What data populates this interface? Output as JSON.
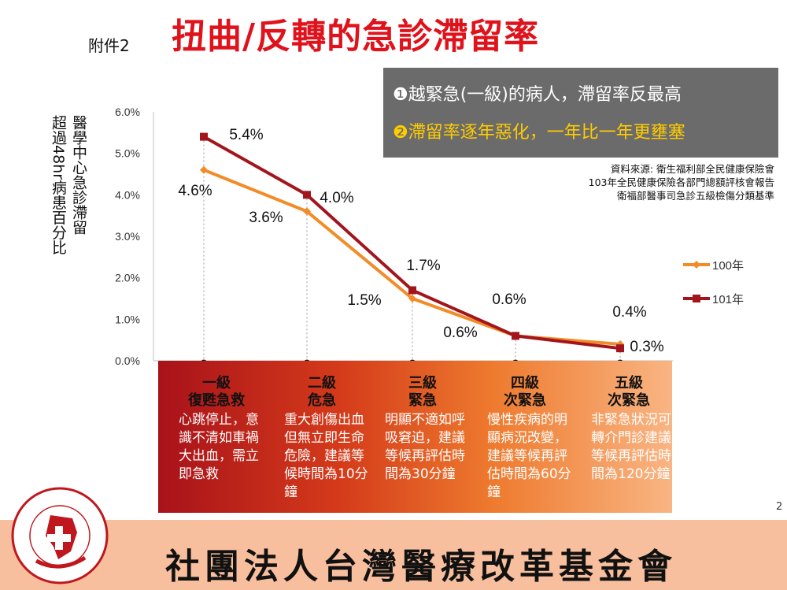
{
  "header": {
    "attachment": "附件2",
    "title": "扭曲/反轉的急診滯留率"
  },
  "callout": {
    "line1": "❶越緊急(一級)的病人，滯留率反最高",
    "line2": "❷滯留率逐年惡化，一年比一年更壅塞"
  },
  "source": {
    "line1": "資料來源: 衛生福利部全民健康保險會",
    "line2": "103年全民健康保險各部門總額評核會報告",
    "line3": "衛福部醫事司急診五級檢傷分類基準"
  },
  "colors": {
    "s100": "#f28c28",
    "s101": "#a3151c",
    "title": "#e0121b"
  },
  "chart_data": {
    "type": "line",
    "ylabel_col1": "醫學中心急診滯留",
    "ylabel_col2": "超過48hr病患百分比",
    "yticks": [
      "6.0%",
      "5.0%",
      "4.0%",
      "3.0%",
      "2.0%",
      "1.0%",
      "0.0%"
    ],
    "ylim": [
      0,
      6
    ],
    "legend_position": "right",
    "series": [
      {
        "name": "100年",
        "values": [
          4.6,
          3.6,
          1.5,
          0.6,
          0.4
        ],
        "labels": [
          "4.6%",
          "3.6%",
          "1.5%",
          "0.6%",
          "0.4%"
        ]
      },
      {
        "name": "101年",
        "values": [
          5.4,
          4.0,
          1.7,
          0.6,
          0.3
        ],
        "labels": [
          "5.4%",
          "4.0%",
          "1.7%",
          "0.6%",
          "0.3%"
        ]
      }
    ],
    "categories": [
      {
        "level": "一級",
        "name": "復甦急救",
        "desc": "心跳停止，意識不清如車禍大出血，需立即急救"
      },
      {
        "level": "二級",
        "name": "危急",
        "desc": "重大創傷出血但無立即生命危險，建議等候時間為10分鐘"
      },
      {
        "level": "三級",
        "name": "緊急",
        "desc": "明顯不適如呼吸窘迫，建議等候再評估時間為30分鐘"
      },
      {
        "level": "四級",
        "name": "次緊急",
        "desc": "慢性疾病的明顯病況改變，建議等候再評估時間為60分鐘"
      },
      {
        "level": "五級",
        "name": "次緊急",
        "desc": "非緊急狀況可轉介門診建議等候再評估時間為120分鐘"
      }
    ]
  },
  "page_number": "2",
  "footer": {
    "foundation_name": "社團法人台灣醫療改革基金會"
  }
}
